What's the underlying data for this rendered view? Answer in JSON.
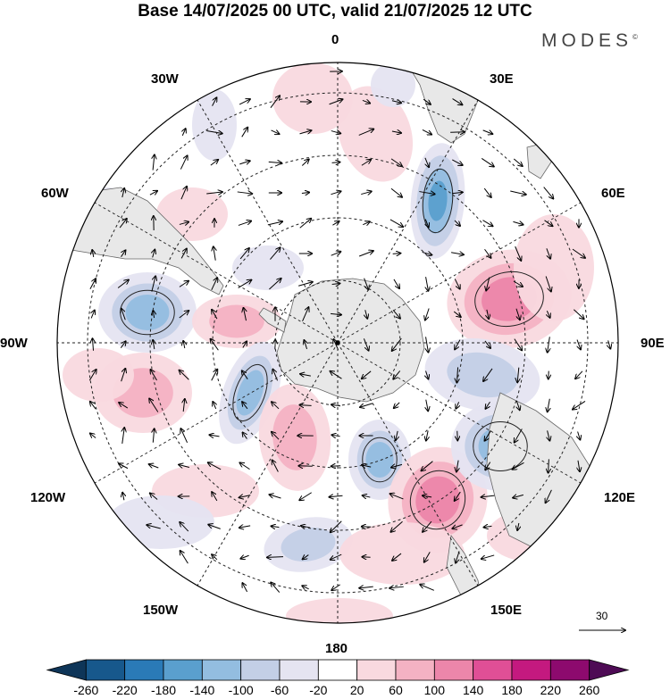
{
  "title": "Base 14/07/2025 00 UTC, valid 21/07/2025 12 UTC",
  "brand": "MODES",
  "brand_mark": "©",
  "longitude_labels": {
    "top": "0",
    "bottom": "180",
    "left": "90W",
    "right": "90E",
    "w30": "30W",
    "e30": "30E",
    "w60": "60W",
    "e60": "60E",
    "w120": "120W",
    "e120": "120E",
    "w150": "150W",
    "e150": "150E"
  },
  "vector_reference": "30",
  "colorbar": {
    "ticks": [
      "-260",
      "-220",
      "-180",
      "-140",
      "-100",
      "-60",
      "-20",
      "20",
      "60",
      "100",
      "140",
      "180",
      "220",
      "260"
    ],
    "colors": [
      "#0e3558",
      "#17588c",
      "#2a7ab7",
      "#5a9fce",
      "#93bde0",
      "#c3cfe6",
      "#e5e4f1",
      "#ffffff",
      "#f9d9df",
      "#f4b2c3",
      "#ec86aa",
      "#e04f96",
      "#c4197f",
      "#8d0a6e",
      "#4e0b55"
    ]
  },
  "map_projection": "south-polar-stereographic",
  "anomaly_field_units_hint": "geopotential height anomaly (shaded), wind vectors"
}
